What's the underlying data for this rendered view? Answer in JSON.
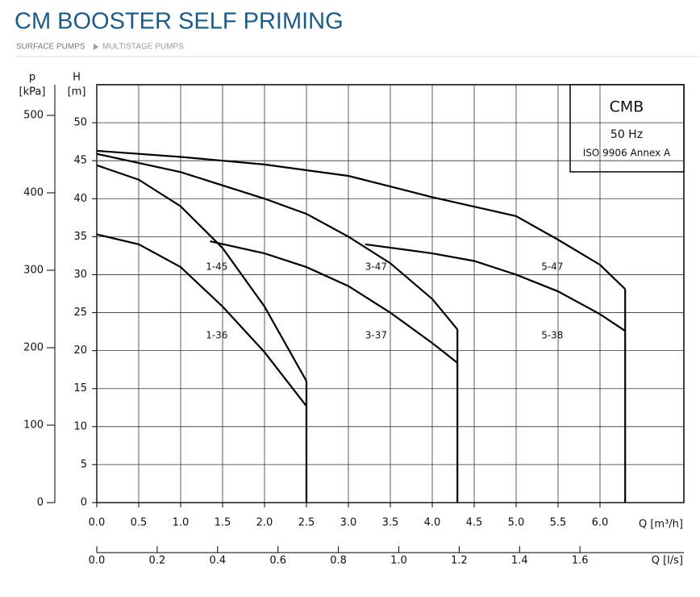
{
  "header": {
    "title": "CM BOOSTER SELF PRIMING",
    "breadcrumb": [
      "SURFACE PUMPS",
      "MULTISTAGE PUMPS"
    ]
  },
  "chart_data": {
    "type": "line",
    "y_label": [
      "H",
      "[m]"
    ],
    "y2_label": [
      "p",
      "[kPa]"
    ],
    "x_label": "Q [m³/h]",
    "x2_label": "Q [l/s]",
    "annotations": [
      "CMB",
      "50 Hz",
      "ISO 9906 Annex A"
    ],
    "xlim": [
      0,
      7
    ],
    "ylim": [
      0,
      55
    ],
    "y2lim": [
      0,
      539.6
    ],
    "x2lim": [
      0,
      1.944
    ],
    "xticks": [
      {
        "value": 0,
        "label": "0.0"
      },
      {
        "value": 0.5,
        "label": "0.5"
      },
      {
        "value": 1,
        "label": "1.0"
      },
      {
        "value": 1.5,
        "label": "1.5"
      },
      {
        "value": 2,
        "label": "2.0"
      },
      {
        "value": 2.5,
        "label": "2.5"
      },
      {
        "value": 3,
        "label": "3.0"
      },
      {
        "value": 3.5,
        "label": "3.5"
      },
      {
        "value": 4,
        "label": "4.0"
      },
      {
        "value": 4.5,
        "label": "4.5"
      },
      {
        "value": 5,
        "label": "5.0"
      },
      {
        "value": 5.5,
        "label": "5.5"
      },
      {
        "value": 6,
        "label": "6.0"
      }
    ],
    "x2ticks": [
      {
        "value": 0,
        "label": "0.0"
      },
      0.2,
      0.4,
      0.6,
      0.8,
      {
        "value": 1,
        "label": "1.0"
      },
      1.2,
      1.4,
      1.6
    ],
    "yticks": [
      0,
      5,
      10,
      15,
      20,
      25,
      30,
      35,
      40,
      45,
      50
    ],
    "y2ticks": [
      0,
      100,
      200,
      300,
      400,
      500
    ],
    "grid": true,
    "series": [
      {
        "name": "1-36",
        "color": "#000000",
        "x": [
          0,
          0.5,
          1.0,
          1.5,
          2.0,
          2.5
        ],
        "values": [
          35.3,
          34,
          31,
          25.8,
          19.8,
          12.7
        ]
      },
      {
        "name": "1-45",
        "color": "#000000",
        "x": [
          0,
          0.5,
          1.0,
          1.5,
          2.0,
          2.5
        ],
        "values": [
          44.4,
          42.5,
          39,
          33.5,
          25.8,
          16
        ]
      },
      {
        "name": "3-37",
        "color": "#000000",
        "x": [
          1.35,
          2.0,
          2.5,
          3.0,
          3.5,
          4.0,
          4.3
        ],
        "values": [
          34.4,
          32.8,
          31,
          28.5,
          25,
          21,
          18.4
        ]
      },
      {
        "name": "3-47",
        "color": "#000000",
        "x": [
          0,
          1.0,
          2.0,
          2.5,
          3.0,
          3.5,
          4.0,
          4.3
        ],
        "values": [
          45.9,
          43.5,
          40,
          38,
          35,
          31.5,
          26.8,
          22.8
        ]
      },
      {
        "name": "5-38",
        "color": "#000000",
        "x": [
          3.2,
          4.0,
          4.5,
          5.0,
          5.5,
          6.0,
          6.3
        ],
        "values": [
          34,
          32.8,
          31.8,
          30,
          27.8,
          24.8,
          22.6
        ]
      },
      {
        "name": "5-47",
        "color": "#000000",
        "x": [
          0,
          1.0,
          2.0,
          3.0,
          4.0,
          5.0,
          5.5,
          6.0,
          6.3
        ],
        "values": [
          46.3,
          45.5,
          44.5,
          43,
          40.2,
          37.7,
          34.6,
          31.3,
          28.1
        ]
      }
    ]
  }
}
